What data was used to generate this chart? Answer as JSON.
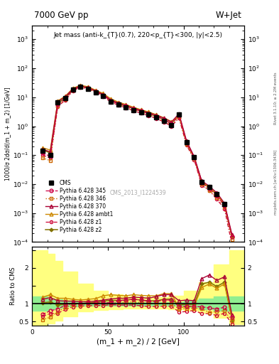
{
  "title_left": "7000 GeV pp",
  "title_right": "W+Jet",
  "plot_title": "Jet mass (anti-k_{T}(0.7), 220<p_{T}<300, |y|<2.5)",
  "xlabel": "(m_1 + m_2) / 2 [GeV]",
  "ylabel_main": "1000/σ 2dσ/d(m_1 + m_2) [1/GeV]",
  "ylabel_ratio": "Ratio to CMS",
  "right_label1": "Rivet 3.1.10; ≥ 2.2M events",
  "right_label2": "mcplots.cern.ch [arXiv:1306.3436]",
  "watermark": "CMS_2013_I1224539",
  "x_data": [
    7,
    12,
    17,
    22,
    27,
    32,
    37,
    42,
    47,
    52,
    57,
    62,
    67,
    72,
    77,
    82,
    87,
    92,
    97,
    102,
    107,
    112,
    117,
    122,
    127,
    132
  ],
  "cms_y": [
    0.14,
    0.1,
    6.5,
    9.5,
    18.0,
    23.0,
    20.0,
    15.0,
    11.0,
    7.0,
    5.5,
    4.5,
    3.5,
    3.0,
    2.5,
    2.0,
    1.5,
    1.1,
    2.5,
    0.28,
    0.085,
    0.012,
    0.008,
    0.0045,
    0.002,
    null
  ],
  "p345_y": [
    0.12,
    0.09,
    5.5,
    9.0,
    18.0,
    23.0,
    20.5,
    15.5,
    11.5,
    7.5,
    6.0,
    5.0,
    4.0,
    3.3,
    2.7,
    2.2,
    1.7,
    1.2,
    2.3,
    0.27,
    0.08,
    0.011,
    0.007,
    0.004,
    0.0018,
    0.00015
  ],
  "p346_y": [
    0.08,
    0.065,
    5.0,
    8.5,
    17.5,
    22.5,
    20.0,
    15.0,
    11.0,
    7.2,
    5.7,
    4.7,
    3.7,
    3.1,
    2.5,
    2.0,
    1.5,
    1.1,
    2.1,
    0.24,
    0.075,
    0.01,
    0.006,
    0.0035,
    0.0016,
    0.00012
  ],
  "p370_y": [
    0.16,
    0.13,
    7.0,
    10.5,
    19.5,
    24.5,
    21.5,
    16.5,
    12.5,
    8.0,
    6.3,
    5.2,
    4.2,
    3.5,
    2.9,
    2.4,
    1.9,
    1.4,
    2.7,
    0.31,
    0.09,
    0.013,
    0.0085,
    0.005,
    0.0022,
    0.00018
  ],
  "pambt1_y": [
    0.18,
    0.15,
    7.5,
    11.0,
    20.5,
    26.0,
    23.0,
    17.5,
    13.5,
    8.8,
    6.8,
    5.6,
    4.5,
    3.7,
    3.1,
    2.5,
    1.95,
    1.45,
    2.2,
    0.26,
    0.08,
    0.012,
    0.0075,
    0.0044,
    0.002,
    0.00016
  ],
  "pz1_y": [
    0.1,
    0.08,
    4.8,
    8.0,
    16.5,
    21.5,
    19.0,
    14.5,
    10.5,
    6.8,
    5.3,
    4.3,
    3.4,
    2.8,
    2.3,
    1.85,
    1.4,
    1.0,
    1.9,
    0.22,
    0.07,
    0.009,
    0.006,
    0.003,
    0.0014,
    8e-05
  ],
  "pz2_y": [
    0.15,
    0.12,
    6.2,
    9.5,
    18.5,
    23.5,
    21.0,
    16.0,
    12.0,
    7.8,
    6.0,
    5.0,
    4.0,
    3.3,
    2.7,
    2.2,
    1.7,
    1.25,
    2.4,
    0.28,
    0.085,
    0.012,
    0.0075,
    0.0044,
    0.002,
    0.00015
  ],
  "ratio_x": [
    7,
    12,
    17,
    22,
    27,
    32,
    37,
    42,
    47,
    52,
    57,
    62,
    67,
    72,
    77,
    82,
    87,
    92,
    97,
    102,
    107,
    112,
    117,
    122,
    127,
    132
  ],
  "ratio_p345": [
    0.7,
    0.8,
    0.85,
    0.96,
    1.0,
    1.0,
    1.02,
    1.02,
    1.02,
    1.03,
    1.08,
    1.1,
    1.12,
    1.1,
    1.06,
    1.06,
    1.1,
    1.1,
    0.92,
    0.93,
    0.92,
    0.91,
    0.88,
    0.85,
    0.9,
    0.63
  ],
  "ratio_p346": [
    0.55,
    0.62,
    0.77,
    0.9,
    0.96,
    0.97,
    0.99,
    1.0,
    1.0,
    1.01,
    1.03,
    1.04,
    1.05,
    1.03,
    1.01,
    1.0,
    1.0,
    1.0,
    0.85,
    0.86,
    0.87,
    0.86,
    0.75,
    0.78,
    0.8,
    0.52
  ],
  "ratio_p370": [
    1.12,
    1.17,
    1.08,
    1.07,
    1.07,
    1.05,
    1.06,
    1.07,
    1.1,
    1.13,
    1.15,
    1.15,
    1.18,
    1.17,
    1.15,
    1.2,
    1.25,
    1.25,
    1.08,
    1.1,
    1.08,
    1.7,
    1.8,
    1.65,
    1.75,
    0.68
  ],
  "ratio_pambt1": [
    1.18,
    1.25,
    1.15,
    1.15,
    1.12,
    1.1,
    1.12,
    1.14,
    1.22,
    1.25,
    1.23,
    1.22,
    1.25,
    1.23,
    1.22,
    1.22,
    1.28,
    1.28,
    0.88,
    0.92,
    0.93,
    1.45,
    1.55,
    1.43,
    1.55,
    0.6
  ],
  "ratio_pz1": [
    0.65,
    0.72,
    0.73,
    0.84,
    0.91,
    0.93,
    0.94,
    0.95,
    0.95,
    0.97,
    0.96,
    0.96,
    0.96,
    0.94,
    0.92,
    0.92,
    0.93,
    0.93,
    0.76,
    0.78,
    0.81,
    0.72,
    0.72,
    0.67,
    0.73,
    0.43
  ],
  "ratio_pz2": [
    1.02,
    1.05,
    0.96,
    0.98,
    1.01,
    1.0,
    1.02,
    1.04,
    1.07,
    1.09,
    1.09,
    1.1,
    1.12,
    1.1,
    1.08,
    1.08,
    1.12,
    1.13,
    0.96,
    0.98,
    0.98,
    1.55,
    1.6,
    1.48,
    1.6,
    0.55
  ],
  "band_edges": [
    0,
    5,
    10,
    15,
    20,
    30,
    40,
    50,
    60,
    70,
    80,
    90,
    100,
    110,
    120,
    130,
    140
  ],
  "green_lo": [
    0.8,
    0.8,
    0.85,
    0.88,
    0.92,
    0.95,
    0.95,
    0.95,
    0.95,
    0.95,
    0.95,
    0.95,
    0.9,
    0.85,
    0.8,
    0.8,
    0.8
  ],
  "green_hi": [
    1.2,
    1.2,
    1.15,
    1.12,
    1.08,
    1.05,
    1.05,
    1.05,
    1.05,
    1.05,
    1.05,
    1.05,
    1.1,
    1.15,
    1.2,
    1.2,
    1.2
  ],
  "yellow_lo": [
    0.4,
    0.4,
    0.45,
    0.52,
    0.65,
    0.78,
    0.82,
    0.85,
    0.86,
    0.87,
    0.87,
    0.85,
    0.8,
    0.75,
    0.6,
    0.42,
    0.42
  ],
  "yellow_hi": [
    2.5,
    2.5,
    2.4,
    2.2,
    1.9,
    1.55,
    1.35,
    1.25,
    1.2,
    1.18,
    1.18,
    1.22,
    1.35,
    1.6,
    2.1,
    2.5,
    2.5
  ],
  "xlim": [
    0,
    140
  ],
  "ylim_main": [
    0.0001,
    3000.0
  ],
  "ylim_ratio": [
    0.38,
    2.6
  ],
  "color_p345": "#cc0044",
  "color_p346": "#cc6600",
  "color_p370": "#aa0033",
  "color_pambt1": "#cc8800",
  "color_pz1": "#cc0033",
  "color_pz2": "#807000"
}
